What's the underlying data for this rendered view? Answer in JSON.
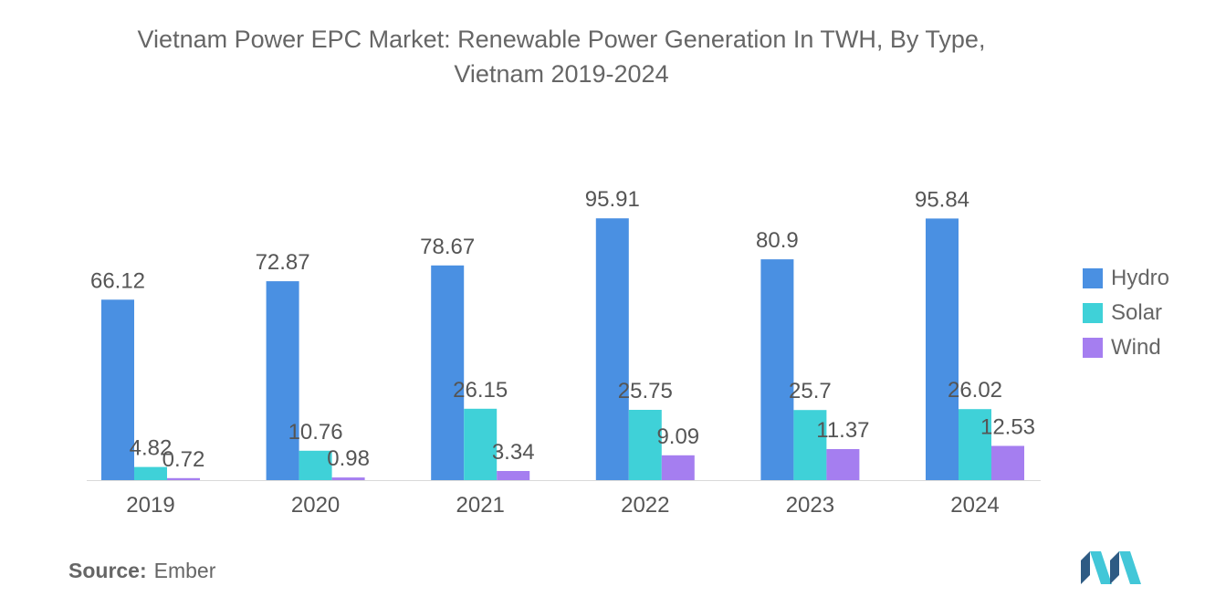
{
  "title_line1": "Vietnam Power EPC Market: Renewable Power Generation In TWH, By Type,",
  "title_line2": "Vietnam 2019-2024",
  "chart_data": {
    "type": "bar",
    "title": "Vietnam Power EPC Market: Renewable Power Generation In TWH, By Type, Vietnam 2019-2024",
    "categories": [
      "2019",
      "2020",
      "2021",
      "2022",
      "2023",
      "2024"
    ],
    "series": [
      {
        "name": "Hydro",
        "color": "#4a90e2",
        "values": [
          66.12,
          72.87,
          78.67,
          95.91,
          80.9,
          95.84
        ],
        "labels": [
          "66.12",
          "72.87",
          "78.67",
          "95.91",
          "80.9",
          "95.84"
        ]
      },
      {
        "name": "Solar",
        "color": "#3fd1d8",
        "values": [
          4.82,
          10.76,
          26.15,
          25.75,
          25.7,
          26.02
        ],
        "labels": [
          "4.82",
          "10.76",
          "26.15",
          "25.75",
          "25.7",
          "26.02"
        ]
      },
      {
        "name": "Wind",
        "color": "#a57ef0",
        "values": [
          0.72,
          0.98,
          3.34,
          9.09,
          11.37,
          12.53
        ],
        "labels": [
          "0.72",
          "0.98",
          "3.34",
          "9.09",
          "11.37",
          "12.53"
        ]
      }
    ],
    "xlabel": "",
    "ylabel": "",
    "ylim": [
      0,
      100
    ],
    "grid": false,
    "legend": "right"
  },
  "source_label": "Source:",
  "source_value": "Ember"
}
